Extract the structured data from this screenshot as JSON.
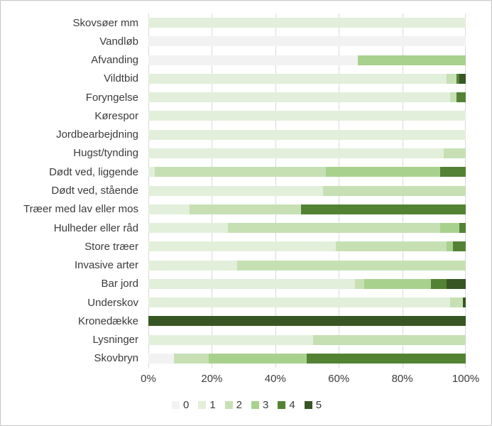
{
  "chart_data": {
    "type": "bar",
    "orientation": "horizontal",
    "stacked": true,
    "grid": "vertical-light-gray",
    "legend_position": "bottom-center",
    "xlabel": "",
    "ylabel": "",
    "xlim": [
      0,
      100
    ],
    "x_ticks": [
      "0%",
      "20%",
      "40%",
      "60%",
      "80%",
      "100%"
    ],
    "x_tick_values": [
      0,
      20,
      40,
      60,
      80,
      100
    ],
    "legend": [
      "0",
      "1",
      "2",
      "3",
      "4",
      "5"
    ],
    "colors": [
      "#F2F2F2",
      "#E2EFDA",
      "#C6E0B4",
      "#A9D18E",
      "#548235",
      "#375623"
    ],
    "text_color": "#3b3b3b",
    "gridline_color": "#d9d9d9",
    "categories": [
      "Skovsøer mm",
      "Vandløb",
      "Afvanding",
      "Vildtbid",
      "Foryngelse",
      "Kørespor",
      "Jordbearbejdning",
      "Hugst/tynding",
      "Dødt ved, liggende",
      "Dødt ved, stående",
      "Træer med lav eller mos",
      "Hulheder eller råd",
      "Store træer",
      "Invasive arter",
      "Bar jord",
      "Underskov",
      "Kronedække",
      "Lysninger",
      "Skovbryn"
    ],
    "rows": [
      {
        "label": "Skovsøer mm",
        "values": [
          0,
          100,
          0,
          0,
          0,
          0
        ]
      },
      {
        "label": "Vandløb",
        "values": [
          100,
          0,
          0,
          0,
          0,
          0
        ]
      },
      {
        "label": "Afvanding",
        "values": [
          66,
          0,
          0,
          34,
          0,
          0
        ]
      },
      {
        "label": "Vildtbid",
        "values": [
          0,
          94,
          3,
          0,
          1,
          2
        ]
      },
      {
        "label": "Foryngelse",
        "values": [
          0,
          95,
          2,
          0,
          3,
          0
        ]
      },
      {
        "label": "Kørespor",
        "values": [
          0,
          100,
          0,
          0,
          0,
          0
        ]
      },
      {
        "label": "Jordbearbejdning",
        "values": [
          0,
          100,
          0,
          0,
          0,
          0
        ]
      },
      {
        "label": "Hugst/tynding",
        "values": [
          0,
          93,
          7,
          0,
          0,
          0
        ]
      },
      {
        "label": "Dødt ved, liggende",
        "values": [
          0,
          2,
          54,
          36,
          8,
          0
        ]
      },
      {
        "label": "Dødt ved, stående",
        "values": [
          0,
          55,
          45,
          0,
          0,
          0
        ]
      },
      {
        "label": "Træer med lav eller mos",
        "values": [
          0,
          13,
          35,
          0,
          52,
          0
        ]
      },
      {
        "label": "Hulheder eller råd",
        "values": [
          0,
          25,
          67,
          6,
          2,
          0
        ]
      },
      {
        "label": "Store træer",
        "values": [
          0,
          59,
          35,
          2,
          4,
          0
        ]
      },
      {
        "label": "Invasive arter",
        "values": [
          0,
          28,
          72,
          0,
          0,
          0
        ]
      },
      {
        "label": "Bar jord",
        "values": [
          0,
          65,
          3,
          21,
          5,
          6
        ]
      },
      {
        "label": "Underskov",
        "values": [
          0,
          95,
          4,
          0,
          0,
          1
        ]
      },
      {
        "label": "Kronedække",
        "values": [
          0,
          0,
          0,
          0,
          0,
          100
        ]
      },
      {
        "label": "Lysninger",
        "values": [
          0,
          52,
          48,
          0,
          0,
          0
        ]
      },
      {
        "label": "Skovbryn",
        "values": [
          8,
          0,
          11,
          31,
          50,
          0
        ]
      }
    ]
  }
}
